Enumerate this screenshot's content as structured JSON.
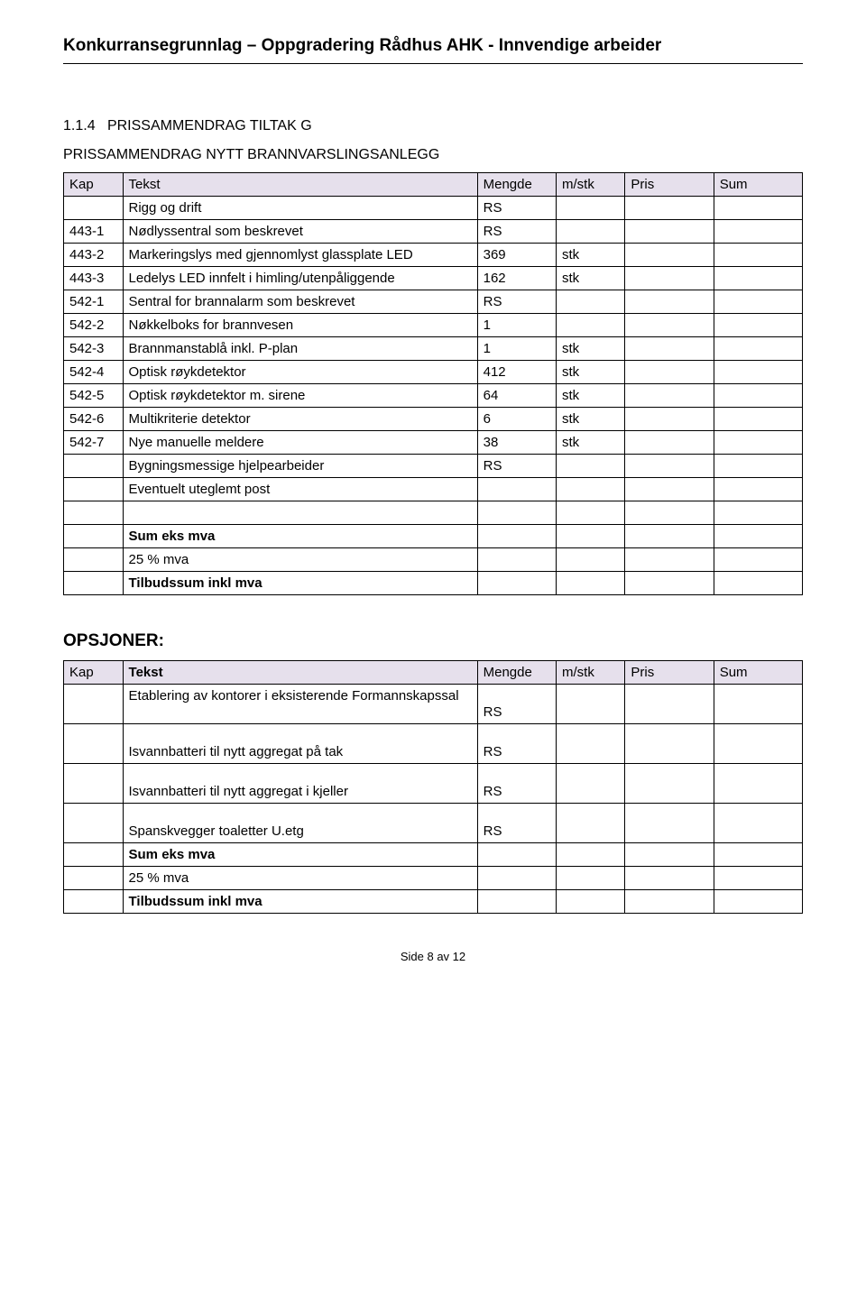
{
  "header": {
    "title": "Konkurransegrunnlag – Oppgradering Rådhus AHK - Innvendige arbeider"
  },
  "section": {
    "num": "1.1.4",
    "num_title": "PRISSAMMENDRAG TILTAK G",
    "sub_title": "PRISSAMMENDRAG NYTT BRANNVARSLINGSANLEGG"
  },
  "table1": {
    "headers": {
      "kap": "Kap",
      "tekst": "Tekst",
      "mengde": "Mengde",
      "mstk": "m/stk",
      "pris": "Pris",
      "sum": "Sum"
    },
    "header_bg": "#e6e0ec",
    "rows": [
      {
        "kap": "",
        "tekst": "Rigg og drift",
        "mengde": "RS",
        "mstk": ""
      },
      {
        "kap": "443-1",
        "tekst": "Nødlyssentral som beskrevet",
        "mengde": "RS",
        "mstk": ""
      },
      {
        "kap": "443-2",
        "tekst": "Markeringslys med gjennomlyst glassplate LED",
        "mengde": "369",
        "mstk": "stk"
      },
      {
        "kap": "443-3",
        "tekst": "Ledelys LED innfelt i himling/utenpåliggende",
        "mengde": "162",
        "mstk": "stk"
      },
      {
        "kap": "542-1",
        "tekst": "Sentral for brannalarm som beskrevet",
        "mengde": "RS",
        "mstk": ""
      },
      {
        "kap": "542-2",
        "tekst": "Nøkkelboks for brannvesen",
        "mengde": "1",
        "mstk": ""
      },
      {
        "kap": "542-3",
        "tekst": "Brannmanstablå inkl. P-plan",
        "mengde": "1",
        "mstk": "stk"
      },
      {
        "kap": "542-4",
        "tekst": "Optisk røykdetektor",
        "mengde": "412",
        "mstk": "stk"
      },
      {
        "kap": "542-5",
        "tekst": "Optisk røykdetektor m. sirene",
        "mengde": "64",
        "mstk": "stk"
      },
      {
        "kap": "542-6",
        "tekst": "Multikriterie detektor",
        "mengde": "6",
        "mstk": "stk"
      },
      {
        "kap": "542-7",
        "tekst": "Nye manuelle meldere",
        "mengde": "38",
        "mstk": "stk"
      },
      {
        "kap": "",
        "tekst": "Bygningsmessige hjelpearbeider",
        "mengde": "RS",
        "mstk": ""
      },
      {
        "kap": "",
        "tekst": "Eventuelt uteglemt post",
        "mengde": "",
        "mstk": ""
      }
    ],
    "summary": [
      {
        "tekst": "Sum eks mva"
      },
      {
        "tekst": "25 % mva"
      },
      {
        "tekst": "Tilbudssum inkl mva"
      }
    ]
  },
  "opsjoner": {
    "title": "OPSJONER:",
    "headers": {
      "kap": "Kap",
      "tekst": "Tekst",
      "mengde": "Mengde",
      "mstk": "m/stk",
      "pris": "Pris",
      "sum": "Sum"
    },
    "rows": [
      {
        "tekst": "Etablering av kontorer i eksisterende Formannskapssal",
        "mengde": "RS"
      },
      {
        "tekst": "Isvannbatteri til nytt aggregat på tak",
        "mengde": "RS"
      },
      {
        "tekst": "Isvannbatteri til nytt aggregat i kjeller",
        "mengde": "RS"
      },
      {
        "tekst": "Spanskvegger toaletter U.etg",
        "mengde": "RS"
      }
    ],
    "summary": [
      {
        "tekst": "Sum eks mva"
      },
      {
        "tekst": "25 % mva"
      },
      {
        "tekst": "Tilbudssum inkl mva"
      }
    ]
  },
  "footer": {
    "page": "Side 8 av 12"
  }
}
